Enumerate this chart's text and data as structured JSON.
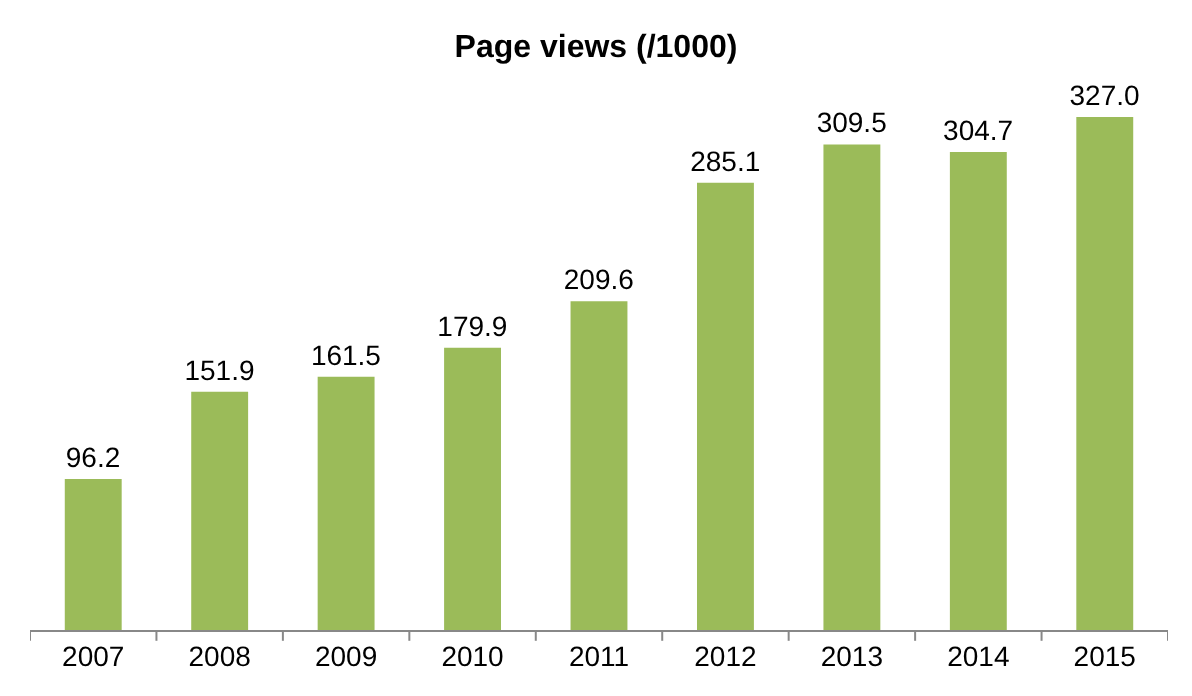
{
  "chart_data": {
    "type": "bar",
    "title": "Page views (/1000)",
    "categories": [
      "2007",
      "2008",
      "2009",
      "2010",
      "2011",
      "2012",
      "2013",
      "2014",
      "2015"
    ],
    "values": [
      96.2,
      151.9,
      161.5,
      179.9,
      209.6,
      285.1,
      309.5,
      304.7,
      327.0
    ],
    "value_labels": [
      "96.2",
      "151.9",
      "161.5",
      "179.9",
      "209.6",
      "285.1",
      "309.5",
      "304.7",
      "327.0"
    ],
    "color": "#9bbb59"
  }
}
